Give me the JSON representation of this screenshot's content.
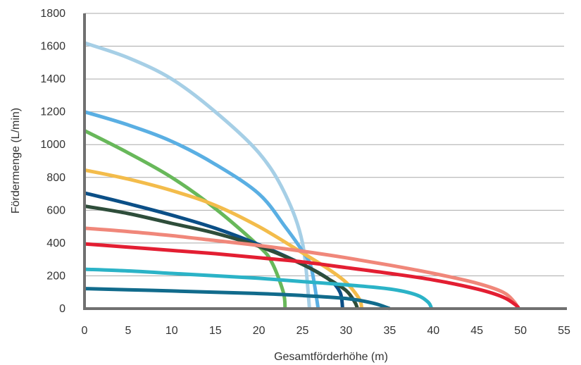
{
  "chart_data": {
    "type": "line",
    "xlabel": "Gesamtförderhöhe (m)",
    "ylabel": "Fördermenge (L/min)",
    "xlim": [
      0,
      55
    ],
    "ylim": [
      0,
      1800
    ],
    "x_ticks": [
      0,
      5,
      10,
      15,
      20,
      25,
      30,
      35,
      40,
      45,
      50,
      55
    ],
    "y_ticks": [
      0,
      200,
      400,
      600,
      800,
      1000,
      1200,
      1400,
      1600,
      1800
    ],
    "grid": "horizontal",
    "legend": "none",
    "axis_color": "#707070",
    "grid_color": "#aaaaaa",
    "series": [
      {
        "color": "#a6cfe6",
        "values": [
          [
            0,
            1620
          ],
          [
            5,
            1530
          ],
          [
            10,
            1400
          ],
          [
            15,
            1200
          ],
          [
            20,
            950
          ],
          [
            23,
            700
          ],
          [
            25,
            400
          ],
          [
            25.8,
            0
          ]
        ]
      },
      {
        "color": "#5aafe3",
        "values": [
          [
            0,
            1200
          ],
          [
            5,
            1120
          ],
          [
            10,
            1020
          ],
          [
            15,
            880
          ],
          [
            20,
            700
          ],
          [
            23,
            500
          ],
          [
            25,
            350
          ],
          [
            26,
            250
          ],
          [
            26.8,
            0
          ]
        ]
      },
      {
        "color": "#68b85a",
        "values": [
          [
            0,
            1085
          ],
          [
            5,
            950
          ],
          [
            10,
            800
          ],
          [
            15,
            610
          ],
          [
            20,
            380
          ],
          [
            21.5,
            280
          ],
          [
            22.8,
            100
          ],
          [
            23,
            0
          ]
        ]
      },
      {
        "color": "#f3bc4b",
        "values": [
          [
            0,
            845
          ],
          [
            5,
            790
          ],
          [
            10,
            720
          ],
          [
            15,
            630
          ],
          [
            20,
            500
          ],
          [
            25,
            340
          ],
          [
            28,
            240
          ],
          [
            30,
            160
          ],
          [
            31.5,
            60
          ],
          [
            31.8,
            0
          ]
        ]
      },
      {
        "color": "#0b4f87",
        "values": [
          [
            0,
            705
          ],
          [
            5,
            640
          ],
          [
            10,
            570
          ],
          [
            15,
            490
          ],
          [
            20,
            390
          ],
          [
            25,
            270
          ],
          [
            28,
            180
          ],
          [
            29.3,
            100
          ],
          [
            29.6,
            0
          ]
        ]
      },
      {
        "color": "#2e4d3a",
        "values": [
          [
            0,
            625
          ],
          [
            5,
            580
          ],
          [
            10,
            520
          ],
          [
            15,
            460
          ],
          [
            20,
            380
          ],
          [
            25,
            270
          ],
          [
            28,
            180
          ],
          [
            30,
            110
          ],
          [
            31,
            40
          ],
          [
            31.3,
            0
          ]
        ]
      },
      {
        "color": "#f0877a",
        "values": [
          [
            0,
            490
          ],
          [
            5,
            470
          ],
          [
            10,
            445
          ],
          [
            15,
            415
          ],
          [
            20,
            385
          ],
          [
            25,
            350
          ],
          [
            30,
            310
          ],
          [
            35,
            265
          ],
          [
            40,
            215
          ],
          [
            45,
            155
          ],
          [
            48,
            100
          ],
          [
            49.3,
            40
          ],
          [
            49.7,
            0
          ]
        ]
      },
      {
        "color": "#e31e32",
        "values": [
          [
            0,
            395
          ],
          [
            5,
            375
          ],
          [
            10,
            355
          ],
          [
            15,
            335
          ],
          [
            20,
            310
          ],
          [
            25,
            285
          ],
          [
            30,
            250
          ],
          [
            35,
            215
          ],
          [
            40,
            175
          ],
          [
            45,
            120
          ],
          [
            48,
            70
          ],
          [
            49.5,
            20
          ],
          [
            49.8,
            0
          ]
        ]
      },
      {
        "color": "#2bb3c7",
        "values": [
          [
            0,
            240
          ],
          [
            5,
            230
          ],
          [
            10,
            215
          ],
          [
            15,
            200
          ],
          [
            20,
            185
          ],
          [
            25,
            165
          ],
          [
            30,
            145
          ],
          [
            35,
            120
          ],
          [
            38,
            85
          ],
          [
            39.4,
            40
          ],
          [
            39.8,
            0
          ]
        ]
      },
      {
        "color": "#116b8c",
        "values": [
          [
            0,
            122
          ],
          [
            5,
            115
          ],
          [
            10,
            108
          ],
          [
            15,
            100
          ],
          [
            20,
            92
          ],
          [
            25,
            80
          ],
          [
            30,
            62
          ],
          [
            33,
            35
          ],
          [
            34.5,
            10
          ],
          [
            35,
            0
          ]
        ]
      }
    ]
  }
}
